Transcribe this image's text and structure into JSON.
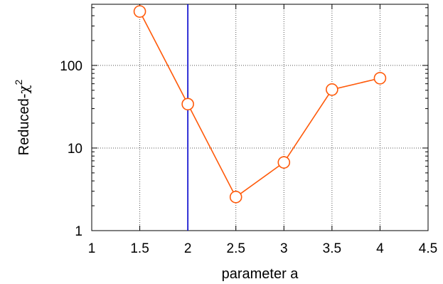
{
  "chart_data": {
    "type": "line",
    "xlabel": "parameter a",
    "ylabel_main": "Reduced-",
    "ylabel_symbol": "χ",
    "ylabel_sup": "2",
    "x_scale": "linear",
    "y_scale": "log",
    "xlim": [
      1,
      4.5
    ],
    "ylim": [
      1,
      550
    ],
    "x_ticks": [
      {
        "value": 1,
        "label": "1"
      },
      {
        "value": 1.5,
        "label": "1.5"
      },
      {
        "value": 2,
        "label": "2"
      },
      {
        "value": 2.5,
        "label": "2.5"
      },
      {
        "value": 3,
        "label": "3"
      },
      {
        "value": 3.5,
        "label": "3.5"
      },
      {
        "value": 4,
        "label": "4"
      },
      {
        "value": 4.5,
        "label": "4.5"
      }
    ],
    "y_ticks": [
      {
        "value": 1,
        "label": "1"
      },
      {
        "value": 10,
        "label": "10"
      },
      {
        "value": 100,
        "label": "100"
      }
    ],
    "grid": true,
    "series": [
      {
        "x": [
          1.5,
          2,
          2.5,
          3,
          3.5,
          4
        ],
        "y": [
          450,
          34,
          2.55,
          6.7,
          51,
          70
        ],
        "color": "#ff5a0a",
        "marker": "open-circle"
      }
    ],
    "vertical_line": {
      "x": 2,
      "color": "#0000cc"
    }
  }
}
